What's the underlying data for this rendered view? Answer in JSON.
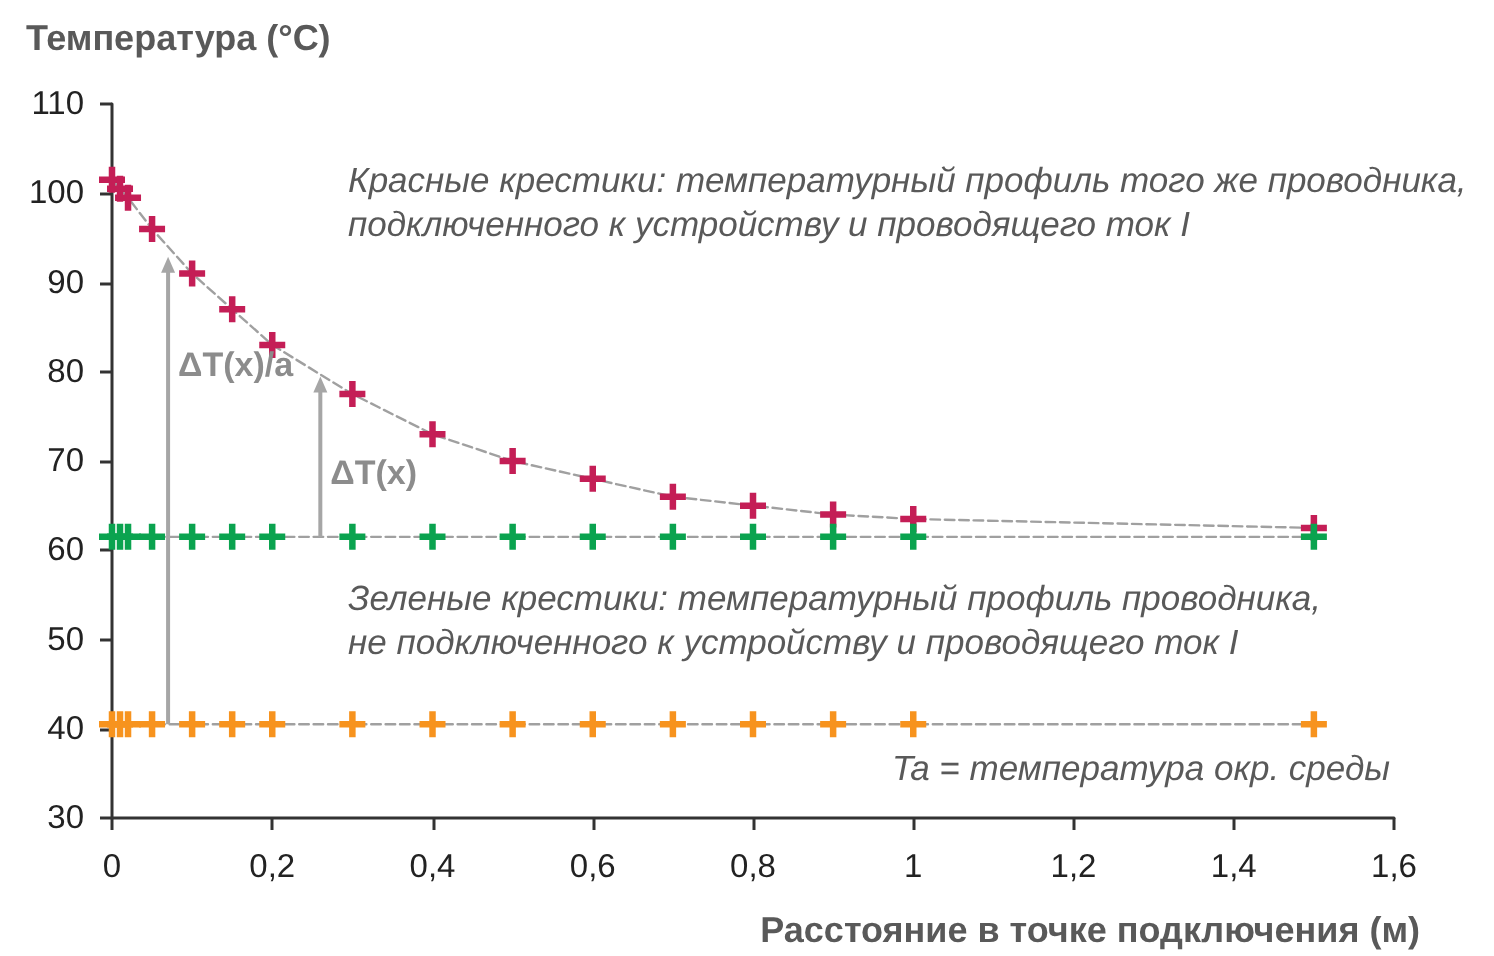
{
  "chart_data": {
    "type": "line",
    "xlabel": "Расстояние в точке подключения (м)",
    "ylabel": "Температура (°C)",
    "x": [
      0,
      0.01,
      0.02,
      0.05,
      0.1,
      0.15,
      0.2,
      0.3,
      0.4,
      0.5,
      0.6,
      0.7,
      0.8,
      0.9,
      1,
      1.5
    ],
    "series": [
      {
        "color": "#c41e56",
        "values": [
          101.5,
          100.5,
          99.5,
          96,
          91,
          87,
          83,
          77.5,
          73,
          70,
          68,
          66,
          65,
          64,
          63.5,
          62.5
        ]
      },
      {
        "color": "#0aa34f",
        "values": [
          61.5,
          61.5,
          61.5,
          61.5,
          61.5,
          61.5,
          61.5,
          61.5,
          61.5,
          61.5,
          61.5,
          61.5,
          61.5,
          61.5,
          61.5,
          61.5
        ]
      },
      {
        "color": "#f7931e",
        "values": [
          40.5,
          40.5,
          40.5,
          40.5,
          40.5,
          40.5,
          40.5,
          40.5,
          40.5,
          40.5,
          40.5,
          40.5,
          40.5,
          40.5,
          40.5,
          40.5
        ]
      }
    ],
    "xlim": [
      0,
      1.6
    ],
    "xticks": [
      0,
      {
        "value": 0.2,
        "label": "0,2"
      },
      {
        "value": 0.4,
        "label": "0,4"
      },
      {
        "value": 0.6,
        "label": "0,6"
      },
      {
        "value": 0.8,
        "label": "0,8"
      },
      1,
      {
        "value": 1.2,
        "label": "1,2"
      },
      {
        "value": 1.4,
        "label": "1,4"
      },
      {
        "value": 1.6,
        "label": "1,6"
      }
    ],
    "ylim": [
      30,
      110
    ],
    "yticks": [
      30,
      40,
      50,
      60,
      70,
      80,
      90,
      100,
      110
    ],
    "annotations": [
      "Красные крестики: температурный профиль того же проводника, подключенного к устройству и проводящего ток I",
      "Зеленые крестики: температурный профиль проводника, не подключенного к устройству и проводящего ток I",
      "Ta = температура окр. среды",
      {
        "text": "ΔT(x)/a",
        "x": 0.07,
        "y": 94
      },
      {
        "text": "ΔT(x)",
        "x": 0.26,
        "y": 79.7
      }
    ],
    "grid": false,
    "marker": "cross",
    "line_style": "dashed"
  }
}
